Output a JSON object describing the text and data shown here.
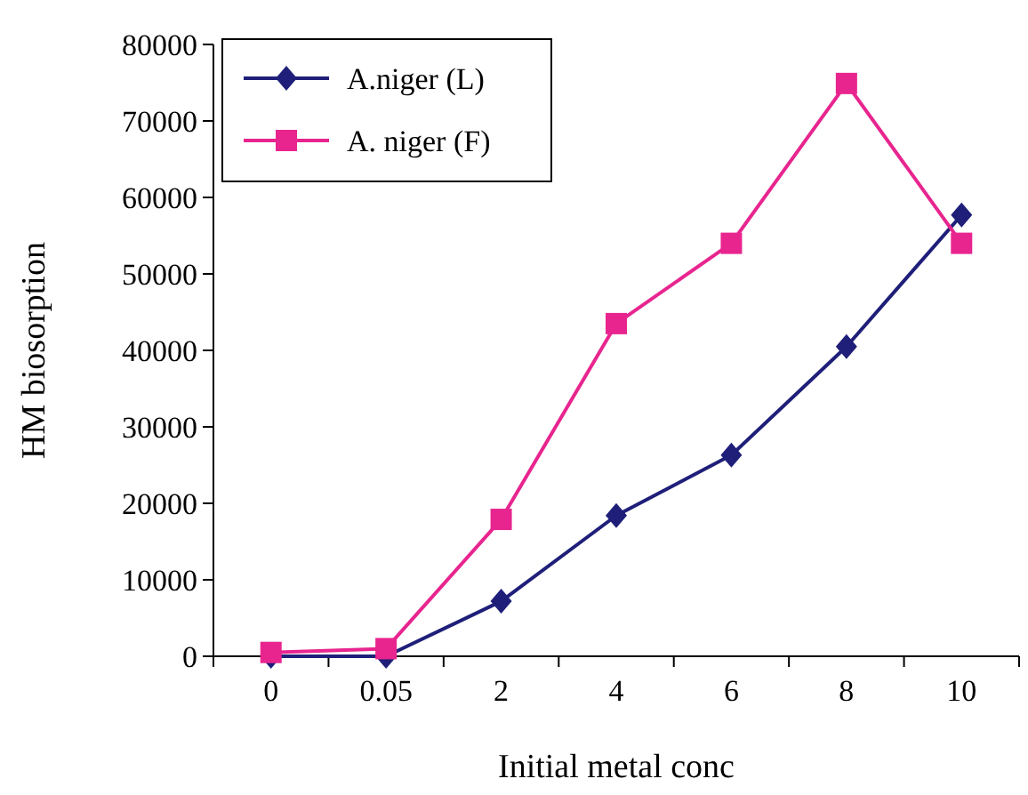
{
  "chart_data": {
    "type": "line",
    "xlabel": "Initial metal conc",
    "ylabel": "HM biosorption",
    "categories": [
      "0",
      "0.05",
      "2",
      "4",
      "6",
      "8",
      "10"
    ],
    "series": [
      {
        "name": "A.niger (L)",
        "color": "#1f1f7a",
        "marker": "diamond",
        "values": [
          0,
          0,
          7200,
          18400,
          26300,
          40500,
          57700
        ]
      },
      {
        "name": "A. niger (F)",
        "color": "#e8258f",
        "marker": "square",
        "values": [
          500,
          1000,
          17900,
          43500,
          54000,
          74900,
          54000
        ]
      }
    ],
    "ylim": [
      0,
      80000
    ],
    "yticks": [
      0,
      10000,
      20000,
      30000,
      40000,
      50000,
      60000,
      70000,
      80000
    ],
    "grid": false,
    "legend": "top left",
    "line_style": "solid"
  }
}
